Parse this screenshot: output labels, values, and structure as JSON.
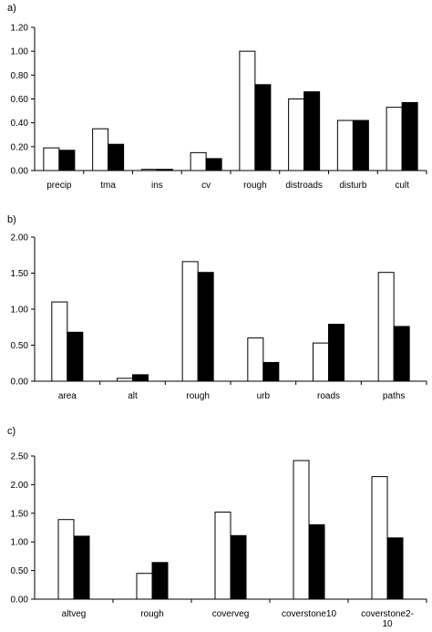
{
  "chart_data": [
    {
      "type": "bar",
      "panel_label": "a)",
      "categories": [
        "precip",
        "tma",
        "ins",
        "cv",
        "rough",
        "distroads",
        "disturb",
        "cult"
      ],
      "series": [
        {
          "fill": "#ffffff",
          "values": [
            0.19,
            0.35,
            0.01,
            0.15,
            1.0,
            0.6,
            0.42,
            0.53
          ]
        },
        {
          "fill": "#000000",
          "values": [
            0.17,
            0.22,
            0.01,
            0.1,
            0.72,
            0.66,
            0.42,
            0.57
          ]
        }
      ],
      "yticks": [
        "0.00",
        "0.20",
        "0.40",
        "0.60",
        "0.80",
        "1.00",
        "1.20"
      ],
      "ylim": [
        0,
        1.2
      ],
      "grid": false,
      "title": "",
      "xlabel": "",
      "ylabel": ""
    },
    {
      "type": "bar",
      "panel_label": "b)",
      "categories": [
        "area",
        "alt",
        "rough",
        "urb",
        "roads",
        "paths"
      ],
      "series": [
        {
          "fill": "#ffffff",
          "values": [
            1.1,
            0.04,
            1.66,
            0.6,
            0.53,
            1.51
          ]
        },
        {
          "fill": "#000000",
          "values": [
            0.68,
            0.09,
            1.51,
            0.26,
            0.79,
            0.76
          ]
        }
      ],
      "yticks": [
        "0.00",
        "0.50",
        "1.00",
        "1.50",
        "2.00"
      ],
      "ylim": [
        0,
        2.0
      ],
      "grid": false,
      "title": "",
      "xlabel": "",
      "ylabel": ""
    },
    {
      "type": "bar",
      "panel_label": "c)",
      "categories": [
        "altveg",
        "rough",
        "coverveg",
        "coverstone10",
        "coverstone2-\n10"
      ],
      "series": [
        {
          "fill": "#ffffff",
          "values": [
            1.39,
            0.45,
            1.52,
            2.42,
            2.14
          ]
        },
        {
          "fill": "#000000",
          "values": [
            1.1,
            0.64,
            1.11,
            1.3,
            1.07
          ]
        }
      ],
      "yticks": [
        "0.00",
        "0.50",
        "1.00",
        "1.50",
        "2.00",
        "2.50"
      ],
      "ylim": [
        0,
        2.5
      ],
      "grid": false,
      "title": "",
      "xlabel": "",
      "ylabel": ""
    }
  ]
}
